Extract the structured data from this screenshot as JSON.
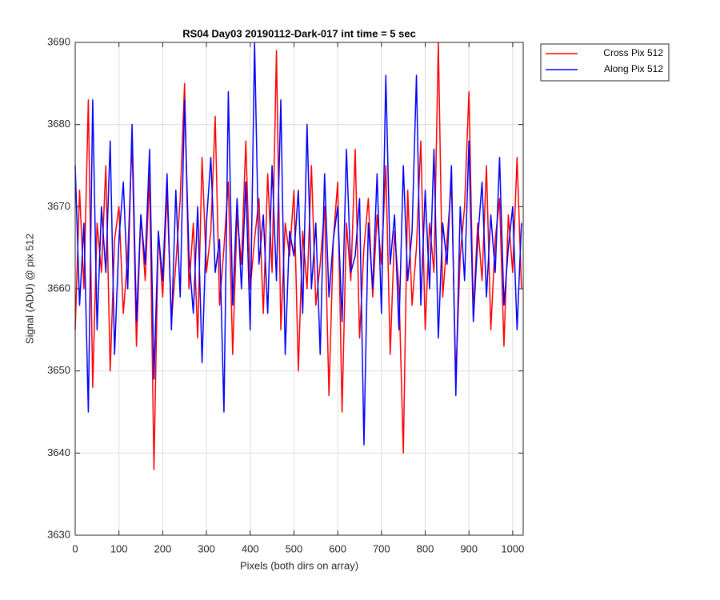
{
  "chart_data": {
    "type": "line",
    "title": "RS04 Day03 20190112-Dark-017 int time = 5 sec",
    "x_label": "Pixels (both dirs on array)",
    "y_label": "Signal (ADU) @ pix 512",
    "x": [
      0,
      10,
      20,
      30,
      40,
      50,
      60,
      70,
      80,
      90,
      100,
      110,
      120,
      130,
      140,
      150,
      160,
      170,
      180,
      190,
      200,
      210,
      220,
      230,
      240,
      250,
      260,
      270,
      280,
      290,
      300,
      310,
      320,
      330,
      340,
      350,
      360,
      370,
      380,
      390,
      400,
      410,
      420,
      430,
      440,
      450,
      460,
      470,
      480,
      490,
      500,
      510,
      520,
      530,
      540,
      550,
      560,
      570,
      580,
      590,
      600,
      610,
      620,
      630,
      640,
      650,
      660,
      670,
      680,
      690,
      700,
      710,
      720,
      730,
      740,
      750,
      760,
      770,
      780,
      790,
      800,
      810,
      820,
      830,
      840,
      850,
      860,
      870,
      880,
      890,
      900,
      910,
      920,
      930,
      940,
      950,
      960,
      970,
      980,
      990,
      1000,
      1010,
      1020
    ],
    "series": [
      {
        "name": "Cross Pix 512",
        "color": "#ff0000",
        "values": [
          3655,
          3672,
          3660,
          3683,
          3648,
          3668,
          3662,
          3675,
          3650,
          3666,
          3670,
          3657,
          3664,
          3678,
          3653,
          3669,
          3661,
          3674,
          3638,
          3667,
          3659,
          3672,
          3656,
          3663,
          3671,
          3685,
          3660,
          3668,
          3654,
          3676,
          3662,
          3667,
          3681,
          3658,
          3665,
          3673,
          3652,
          3669,
          3663,
          3678,
          3660,
          3666,
          3671,
          3657,
          3674,
          3662,
          3689,
          3655,
          3668,
          3664,
          3672,
          3650,
          3667,
          3660,
          3675,
          3658,
          3663,
          3670,
          3647,
          3666,
          3673,
          3645,
          3668,
          3661,
          3677,
          3654,
          3665,
          3671,
          3659,
          3669,
          3663,
          3675,
          3652,
          3667,
          3660,
          3640,
          3672,
          3658,
          3665,
          3678,
          3655,
          3668,
          3662,
          3690,
          3659,
          3666,
          3673,
          3649,
          3664,
          3670,
          3684,
          3657,
          3668,
          3661,
          3675,
          3655,
          3666,
          3671,
          3653,
          3669,
          3662,
          3676,
          3660
        ]
      },
      {
        "name": "Along Pix 512",
        "color": "#0000ff",
        "values": [
          3675,
          3658,
          3668,
          3645,
          3683,
          3655,
          3670,
          3662,
          3678,
          3652,
          3666,
          3673,
          3660,
          3680,
          3656,
          3669,
          3663,
          3677,
          3649,
          3667,
          3661,
          3674,
          3655,
          3672,
          3659,
          3683,
          3664,
          3657,
          3670,
          3651,
          3668,
          3676,
          3662,
          3666,
          3645,
          3684,
          3658,
          3671,
          3660,
          3673,
          3655,
          3690,
          3663,
          3669,
          3657,
          3675,
          3661,
          3683,
          3652,
          3667,
          3664,
          3672,
          3657,
          3680,
          3660,
          3668,
          3652,
          3674,
          3659,
          3666,
          3670,
          3656,
          3677,
          3662,
          3664,
          3671,
          3641,
          3668,
          3660,
          3674,
          3657,
          3686,
          3663,
          3669,
          3655,
          3675,
          3661,
          3667,
          3686,
          3658,
          3672,
          3660,
          3677,
          3654,
          3668,
          3663,
          3675,
          3647,
          3670,
          3661,
          3678,
          3656,
          3666,
          3673,
          3659,
          3669,
          3662,
          3676,
          3658,
          3665,
          3670,
          3655,
          3668
        ]
      }
    ],
    "xlim": [
      0,
      1024
    ],
    "xticks": [
      0,
      100,
      200,
      300,
      400,
      500,
      600,
      700,
      800,
      900,
      1000
    ],
    "ylim": [
      3630,
      3690
    ],
    "yticks": [
      3630,
      3640,
      3650,
      3660,
      3670,
      3680,
      3690
    ],
    "grid": true,
    "legend": "outside-top-right"
  }
}
